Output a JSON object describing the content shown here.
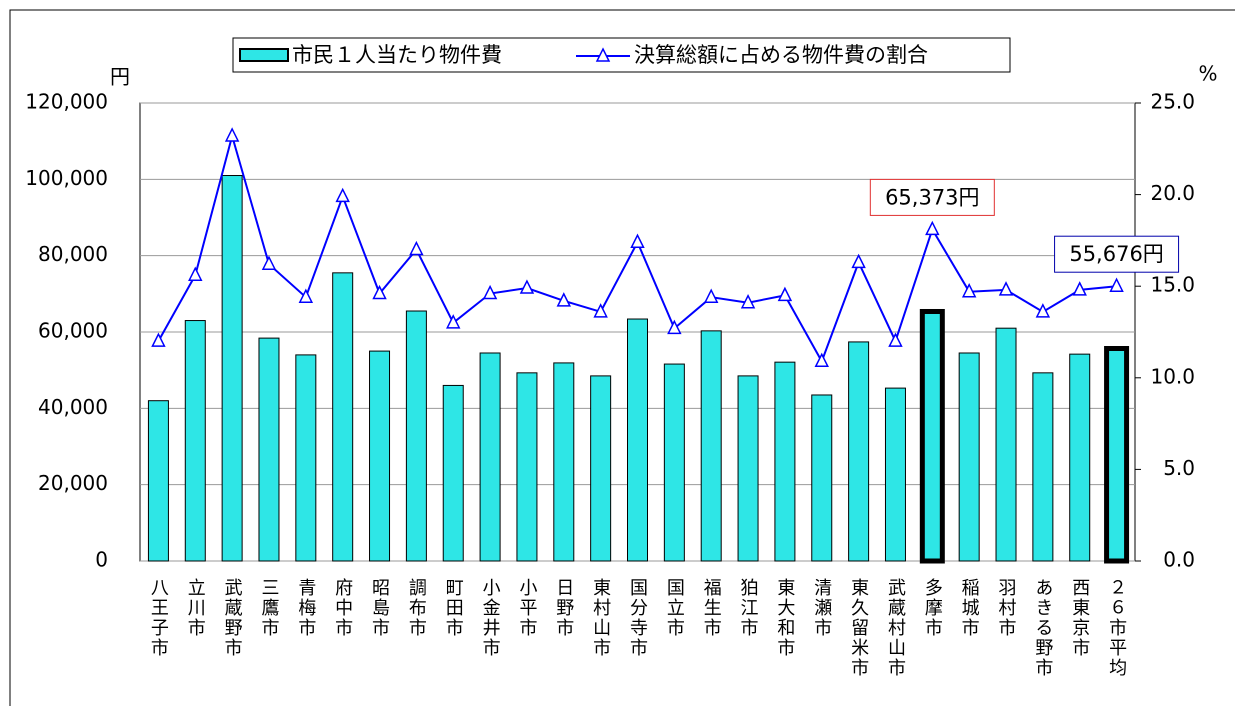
{
  "chart_data": {
    "type": "bar-line",
    "categories": [
      "八王子市",
      "立川市",
      "武蔵野市",
      "三鷹市",
      "青梅市",
      "府中市",
      "昭島市",
      "調布市",
      "町田市",
      "小金井市",
      "小平市",
      "日野市",
      "東村山市",
      "国分寺市",
      "国立市",
      "福生市",
      "狛江市",
      "東大和市",
      "清瀬市",
      "東久留米市",
      "武蔵村山市",
      "多摩市",
      "稲城市",
      "羽村市",
      "あきる野市",
      "西東京市",
      "２６市平均"
    ],
    "series": [
      {
        "name": "市民１人当たり物件費",
        "type": "bar",
        "color": "#2ee6e6",
        "values": [
          42000,
          63000,
          101000,
          58400,
          54000,
          75500,
          55000,
          65500,
          46000,
          54500,
          49300,
          51900,
          48500,
          63400,
          51600,
          60300,
          48500,
          52100,
          43500,
          57400,
          45300,
          65373,
          54500,
          61000,
          49300,
          54200,
          55676
        ],
        "value_labels": [
          null,
          null,
          null,
          null,
          null,
          null,
          null,
          null,
          null,
          null,
          null,
          null,
          null,
          null,
          null,
          null,
          null,
          null,
          null,
          null,
          null,
          "65,373円",
          null,
          null,
          null,
          null,
          "55,676円"
        ]
      },
      {
        "name": "決算総額に占める物件費の割合",
        "type": "line",
        "axis": "y2",
        "color": "#0000ff",
        "values": [
          12.0,
          15.6,
          23.2,
          16.2,
          14.4,
          19.9,
          14.6,
          17.0,
          13.0,
          14.6,
          14.9,
          14.2,
          13.6,
          17.4,
          12.7,
          14.4,
          14.1,
          14.5,
          10.9,
          16.3,
          12.0,
          18.1,
          14.7,
          14.8,
          13.6,
          14.8,
          15.0
        ]
      }
    ],
    "y_unit": "円",
    "y2_unit": "%",
    "ylim": [
      0,
      120000
    ],
    "yticks": [
      0,
      {
        "value": 20000,
        "label": "20,000"
      },
      {
        "value": 40000,
        "label": "40,000"
      },
      {
        "value": 60000,
        "label": "60,000"
      },
      {
        "value": 80000,
        "label": "80,000"
      },
      {
        "value": 100000,
        "label": "100,000"
      },
      {
        "value": 120000,
        "label": "120,000"
      }
    ],
    "y2lim": [
      0,
      25
    ],
    "y2ticks": [
      {
        "value": 0,
        "label": "0.0"
      },
      {
        "value": 5,
        "label": "5.0"
      },
      {
        "value": 10,
        "label": "10.0"
      },
      {
        "value": 15,
        "label": "15.0"
      },
      {
        "value": 20,
        "label": "20.0"
      },
      {
        "value": 25,
        "label": "25.0"
      }
    ],
    "grid": true,
    "legend": "top"
  }
}
